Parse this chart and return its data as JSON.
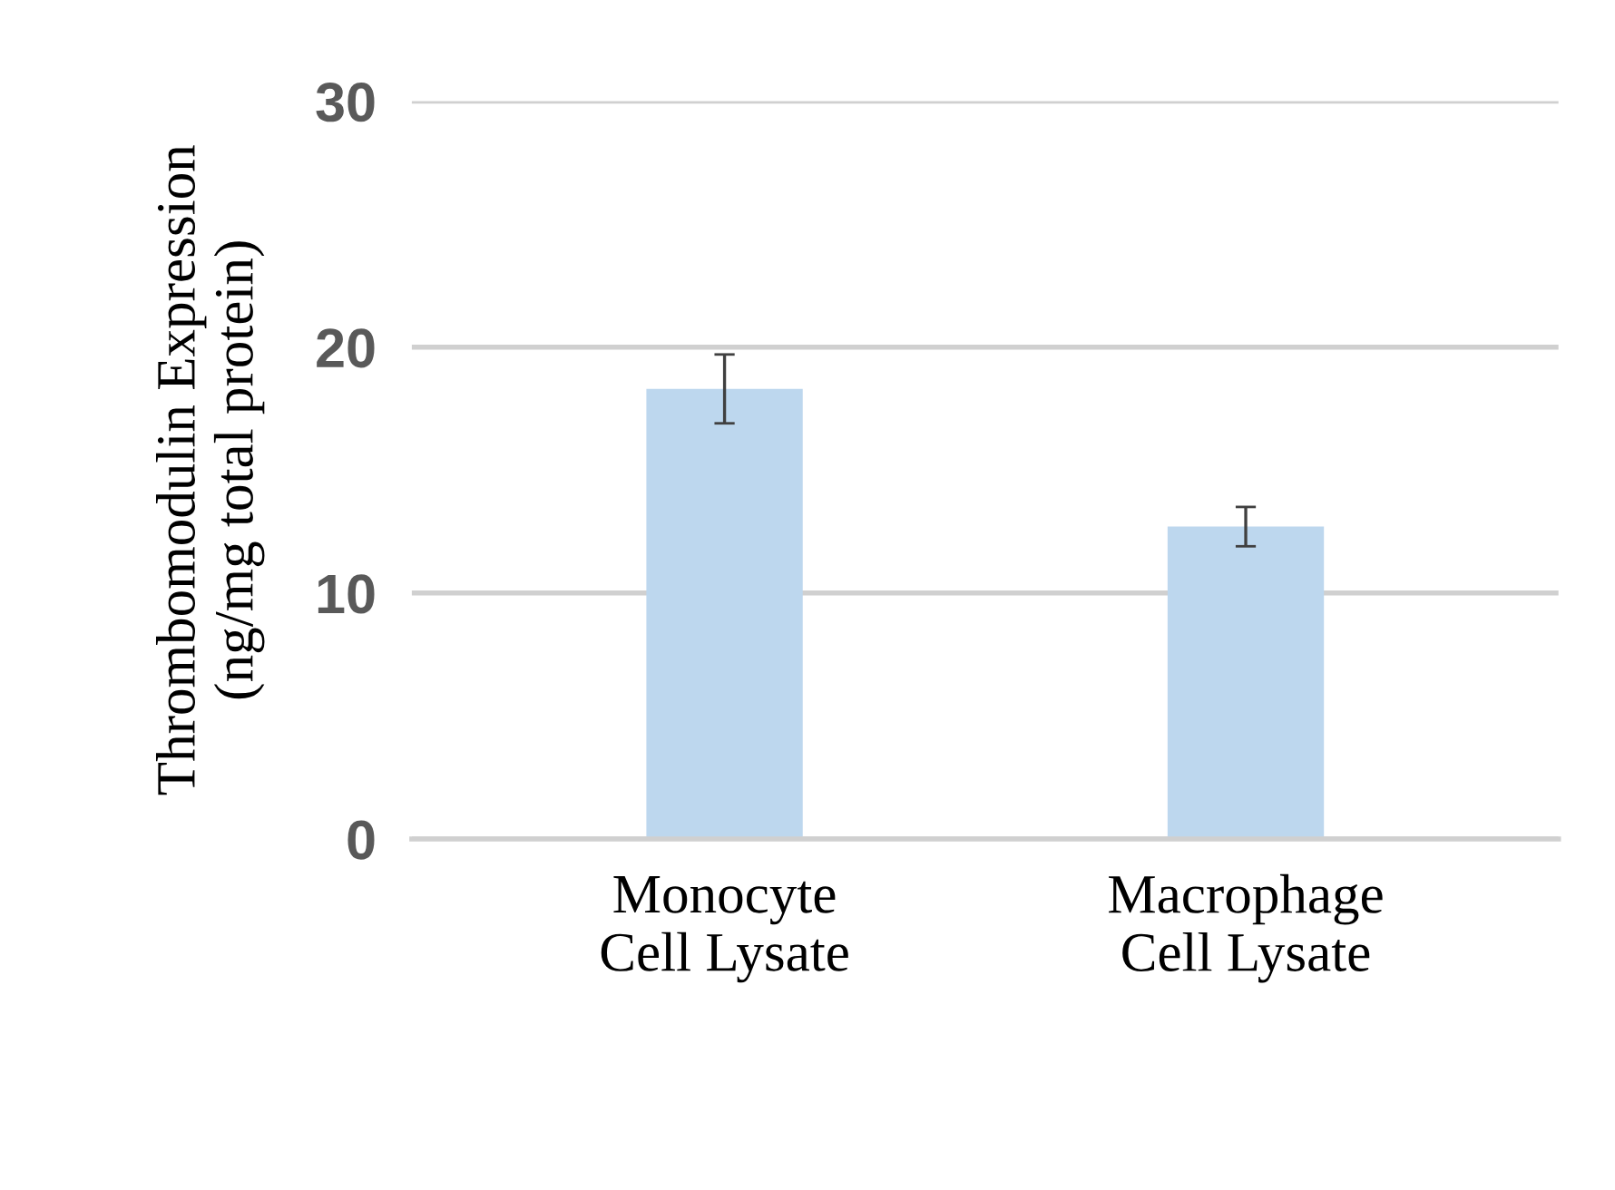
{
  "chart_data": {
    "type": "bar",
    "ylabel": "Thrombomodulin Expression\n(ng/mg total protein)",
    "categories": [
      "Monocyte\nCell Lysate",
      "Macrophage\nCell Lysate"
    ],
    "values": [
      18.3,
      12.7
    ],
    "color": "#bdd7ee",
    "errors": [
      [
        16.9,
        19.7
      ],
      [
        11.9,
        13.5
      ]
    ],
    "ylim": [
      0,
      30
    ],
    "yticks": [
      0,
      10,
      20,
      30
    ],
    "grid": "y"
  }
}
